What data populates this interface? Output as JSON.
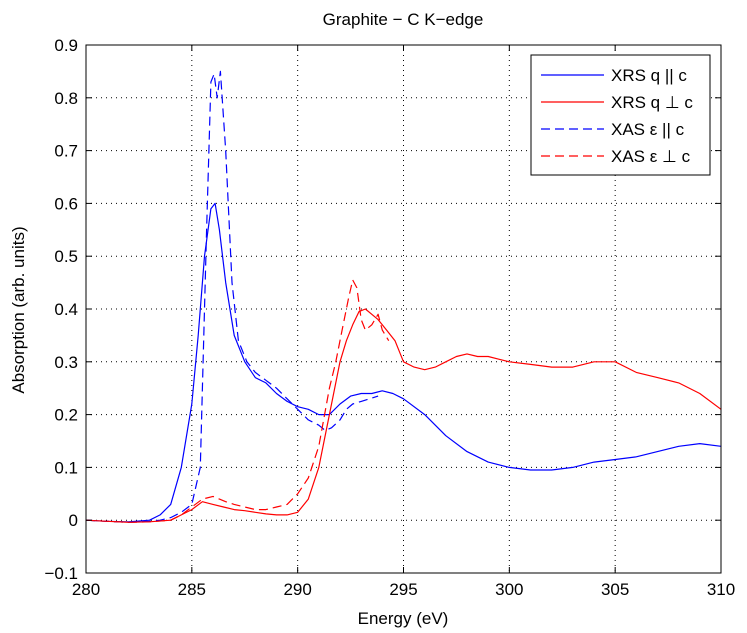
{
  "chart_data": {
    "type": "line",
    "title": "Graphite − C K−edge",
    "xlabel": "Energy (eV)",
    "ylabel": "Absorption (arb. units)",
    "xlim": [
      280,
      310
    ],
    "ylim": [
      -0.1,
      0.9
    ],
    "grid": true,
    "legend_position": "top-right",
    "x_ticks": [
      280,
      285,
      290,
      295,
      300,
      305,
      310
    ],
    "x_tick_labels": [
      "280",
      "285",
      "290",
      "295",
      "300",
      "305",
      "310"
    ],
    "y_ticks": [
      -0.1,
      0,
      0.1,
      0.2,
      0.3,
      0.4,
      0.5,
      0.6,
      0.7,
      0.8,
      0.9
    ],
    "y_tick_labels": [
      "−0.1",
      "0",
      "0.1",
      "0.2",
      "0.3",
      "0.4",
      "0.5",
      "0.6",
      "0.7",
      "0.8",
      "0.9"
    ],
    "series": [
      {
        "name": "XRS q || c",
        "label_text": "XRS q || c",
        "color": "#0000ff",
        "dash": "solid",
        "x": [
          280,
          281,
          282,
          283,
          283.5,
          284,
          284.5,
          285,
          285.3,
          285.6,
          285.9,
          286.1,
          286.3,
          286.6,
          287,
          287.5,
          288,
          288.5,
          289,
          289.5,
          290,
          290.5,
          291,
          291.5,
          292,
          292.5,
          293,
          293.5,
          294,
          294.5,
          295,
          296,
          297,
          298,
          299,
          300,
          301,
          302,
          303,
          304,
          305,
          306,
          307,
          308,
          309,
          310
        ],
        "y": [
          0.0,
          -0.002,
          -0.003,
          0.0,
          0.01,
          0.03,
          0.1,
          0.22,
          0.35,
          0.5,
          0.59,
          0.6,
          0.55,
          0.45,
          0.35,
          0.3,
          0.27,
          0.26,
          0.24,
          0.225,
          0.215,
          0.21,
          0.2,
          0.2,
          0.22,
          0.235,
          0.24,
          0.24,
          0.245,
          0.24,
          0.23,
          0.2,
          0.16,
          0.13,
          0.11,
          0.1,
          0.095,
          0.095,
          0.1,
          0.11,
          0.115,
          0.12,
          0.13,
          0.14,
          0.145,
          0.14
        ]
      },
      {
        "name": "XRS q ⊥ c",
        "label_text": "XRS q ⊥ c",
        "color": "#ff0000",
        "dash": "solid",
        "x": [
          280,
          281,
          282,
          283,
          284,
          284.5,
          285,
          285.5,
          286,
          286.5,
          287,
          287.5,
          288,
          288.5,
          289,
          289.5,
          290,
          290.5,
          291,
          291.5,
          292,
          292.3,
          292.6,
          292.9,
          293.2,
          293.5,
          293.8,
          294.2,
          294.6,
          295,
          295.5,
          296,
          296.5,
          297,
          297.5,
          298,
          298.5,
          299,
          299.5,
          300,
          301,
          302,
          303,
          304,
          305,
          306,
          307,
          308,
          309,
          310
        ],
        "y": [
          0.0,
          -0.002,
          -0.004,
          -0.003,
          0.0,
          0.01,
          0.02,
          0.035,
          0.03,
          0.025,
          0.02,
          0.018,
          0.015,
          0.012,
          0.01,
          0.01,
          0.015,
          0.04,
          0.1,
          0.2,
          0.3,
          0.34,
          0.37,
          0.395,
          0.4,
          0.39,
          0.38,
          0.36,
          0.34,
          0.3,
          0.29,
          0.285,
          0.29,
          0.3,
          0.31,
          0.315,
          0.31,
          0.31,
          0.305,
          0.3,
          0.295,
          0.29,
          0.29,
          0.3,
          0.3,
          0.28,
          0.27,
          0.26,
          0.24,
          0.21
        ]
      },
      {
        "name": "XAS ε || c",
        "label_text": "XAS ε || c",
        "color": "#0000ff",
        "dash": "dashed",
        "x": [
          280,
          281,
          282,
          283,
          283.5,
          284,
          284.5,
          285,
          285.4,
          285.7,
          285.9,
          286.05,
          286.2,
          286.35,
          286.6,
          286.9,
          287.2,
          287.6,
          288,
          288.5,
          289,
          289.5,
          290,
          290.5,
          291,
          291.3,
          291.6,
          292,
          292.3,
          292.6,
          293,
          293.4,
          293.8
        ],
        "y": [
          0.0,
          -0.002,
          -0.004,
          -0.002,
          0.0,
          0.005,
          0.015,
          0.03,
          0.1,
          0.55,
          0.83,
          0.845,
          0.8,
          0.85,
          0.7,
          0.45,
          0.34,
          0.3,
          0.28,
          0.265,
          0.25,
          0.23,
          0.21,
          0.19,
          0.18,
          0.17,
          0.175,
          0.19,
          0.21,
          0.22,
          0.225,
          0.23,
          0.235
        ]
      },
      {
        "name": "XAS ε ⊥ c",
        "label_text": "XAS ε ⊥ c",
        "color": "#ff0000",
        "dash": "dashed",
        "x": [
          280,
          281,
          282,
          283,
          284,
          284.5,
          285,
          285.5,
          286,
          286.3,
          286.6,
          287,
          287.5,
          288,
          288.5,
          289,
          289.5,
          290,
          290.5,
          291,
          291.5,
          291.8,
          292.1,
          292.4,
          292.6,
          292.8,
          293,
          293.2,
          293.5,
          293.8,
          294,
          294.3
        ],
        "y": [
          0.0,
          -0.002,
          -0.004,
          -0.003,
          0.0,
          0.01,
          0.025,
          0.04,
          0.045,
          0.04,
          0.035,
          0.03,
          0.025,
          0.02,
          0.02,
          0.025,
          0.03,
          0.05,
          0.08,
          0.14,
          0.25,
          0.3,
          0.36,
          0.42,
          0.455,
          0.44,
          0.38,
          0.36,
          0.37,
          0.39,
          0.36,
          0.34
        ]
      }
    ]
  }
}
